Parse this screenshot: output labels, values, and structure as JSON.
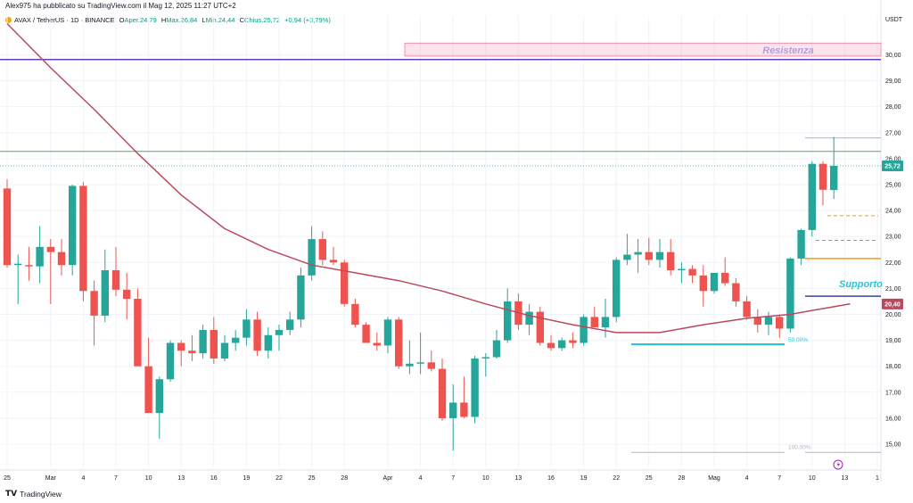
{
  "header": {
    "author_line": "Alex975 ha pubblicato su TradingView.com il Mag 12, 2025 11:27 UTC+2",
    "symbol": "AVAX / TetherUS · 1D · BINANCE",
    "open_label": "O",
    "open_text": "Aper.24,79",
    "high_label": "H",
    "high_text": "Max.26,84",
    "low_label": "L",
    "low_text": "Min.24,44",
    "close_label": "C",
    "close_text": "Chius.25,72",
    "change_text": "+0,94 (+3,79%)"
  },
  "footer": {
    "brand": "TradingView",
    "logo": "tradingview-logo-icon"
  },
  "colors": {
    "up": "#26a69a",
    "down": "#ef5350",
    "ma": "#b94a5e",
    "resistance_line": "#6a3bb5",
    "green_line": "#4caf50",
    "orange_line": "#ff9800",
    "support_line": "#3f3f9f",
    "fib50": "#26c6da"
  },
  "chart_data": {
    "type": "candlestick",
    "currency": "USDT",
    "ylim": [
      14.45,
      31.15
    ],
    "x_tick_labels": [
      {
        "i": 0,
        "label": "25"
      },
      {
        "i": 4,
        "label": "Mar"
      },
      {
        "i": 7,
        "label": "4"
      },
      {
        "i": 10,
        "label": "7"
      },
      {
        "i": 13,
        "label": "10"
      },
      {
        "i": 16,
        "label": "13"
      },
      {
        "i": 19,
        "label": "16"
      },
      {
        "i": 22,
        "label": "19"
      },
      {
        "i": 25,
        "label": "22"
      },
      {
        "i": 28,
        "label": "25"
      },
      {
        "i": 31,
        "label": "28"
      },
      {
        "i": 35,
        "label": "Apr"
      },
      {
        "i": 38,
        "label": "4"
      },
      {
        "i": 41,
        "label": "7"
      },
      {
        "i": 44,
        "label": "10"
      },
      {
        "i": 47,
        "label": "13"
      },
      {
        "i": 50,
        "label": "16"
      },
      {
        "i": 53,
        "label": "19"
      },
      {
        "i": 56,
        "label": "22"
      },
      {
        "i": 59,
        "label": "25"
      },
      {
        "i": 62,
        "label": "28"
      },
      {
        "i": 65,
        "label": "Mag"
      },
      {
        "i": 68,
        "label": "4"
      },
      {
        "i": 71,
        "label": "7"
      },
      {
        "i": 74,
        "label": "10"
      },
      {
        "i": 77,
        "label": "13"
      },
      {
        "i": 80,
        "label": "1"
      }
    ],
    "y_ticks": [
      "15,00",
      "16,00",
      "17,00",
      "18,00",
      "19,00",
      "20,00",
      "21,00",
      "22,00",
      "23,00",
      "24,00",
      "25,00",
      "26,00",
      "27,00",
      "28,00",
      "29,00",
      "30,00"
    ],
    "candles": [
      {
        "o": 24.85,
        "h": 25.2,
        "l": 21.8,
        "c": 21.9
      },
      {
        "o": 21.9,
        "h": 22.3,
        "l": 20.4,
        "c": 21.95
      },
      {
        "o": 21.9,
        "h": 22.6,
        "l": 21.3,
        "c": 21.85
      },
      {
        "o": 21.85,
        "h": 23.4,
        "l": 21.2,
        "c": 22.6
      },
      {
        "o": 22.6,
        "h": 22.9,
        "l": 20.4,
        "c": 22.4
      },
      {
        "o": 22.4,
        "h": 22.9,
        "l": 21.5,
        "c": 21.9
      },
      {
        "o": 21.9,
        "h": 25.0,
        "l": 21.5,
        "c": 24.95
      },
      {
        "o": 24.95,
        "h": 25.1,
        "l": 20.5,
        "c": 20.9
      },
      {
        "o": 20.9,
        "h": 21.3,
        "l": 18.8,
        "c": 19.95
      },
      {
        "o": 19.95,
        "h": 22.5,
        "l": 19.7,
        "c": 21.7
      },
      {
        "o": 21.7,
        "h": 22.6,
        "l": 20.7,
        "c": 20.95
      },
      {
        "o": 20.95,
        "h": 21.6,
        "l": 19.8,
        "c": 20.6
      },
      {
        "o": 20.6,
        "h": 21.0,
        "l": 18.1,
        "c": 18.0
      },
      {
        "o": 18.0,
        "h": 19.1,
        "l": 16.2,
        "c": 16.2
      },
      {
        "o": 16.2,
        "h": 17.6,
        "l": 15.2,
        "c": 17.5
      },
      {
        "o": 17.5,
        "h": 19.0,
        "l": 17.4,
        "c": 18.9
      },
      {
        "o": 18.9,
        "h": 19.0,
        "l": 18.0,
        "c": 18.6
      },
      {
        "o": 18.6,
        "h": 19.2,
        "l": 18.2,
        "c": 18.5
      },
      {
        "o": 18.5,
        "h": 19.6,
        "l": 18.3,
        "c": 19.4
      },
      {
        "o": 19.4,
        "h": 19.9,
        "l": 18.1,
        "c": 18.3
      },
      {
        "o": 18.3,
        "h": 19.2,
        "l": 18.2,
        "c": 18.9
      },
      {
        "o": 18.9,
        "h": 19.4,
        "l": 18.6,
        "c": 19.1
      },
      {
        "o": 19.1,
        "h": 20.2,
        "l": 18.8,
        "c": 19.8
      },
      {
        "o": 19.8,
        "h": 20.1,
        "l": 18.4,
        "c": 18.6
      },
      {
        "o": 18.6,
        "h": 19.5,
        "l": 18.3,
        "c": 19.2
      },
      {
        "o": 19.2,
        "h": 19.6,
        "l": 18.6,
        "c": 19.4
      },
      {
        "o": 19.4,
        "h": 20.1,
        "l": 19.2,
        "c": 19.8
      },
      {
        "o": 19.8,
        "h": 21.8,
        "l": 19.5,
        "c": 21.5
      },
      {
        "o": 21.5,
        "h": 23.4,
        "l": 21.3,
        "c": 22.9
      },
      {
        "o": 22.9,
        "h": 23.2,
        "l": 21.9,
        "c": 22.1
      },
      {
        "o": 22.1,
        "h": 22.6,
        "l": 21.9,
        "c": 22.0
      },
      {
        "o": 22.0,
        "h": 22.1,
        "l": 20.3,
        "c": 20.4
      },
      {
        "o": 20.4,
        "h": 20.6,
        "l": 19.5,
        "c": 19.6
      },
      {
        "o": 19.6,
        "h": 19.7,
        "l": 18.9,
        "c": 18.9
      },
      {
        "o": 18.9,
        "h": 19.3,
        "l": 18.6,
        "c": 18.8
      },
      {
        "o": 18.8,
        "h": 19.9,
        "l": 18.5,
        "c": 19.8
      },
      {
        "o": 19.8,
        "h": 19.9,
        "l": 17.9,
        "c": 18.0
      },
      {
        "o": 18.0,
        "h": 19.0,
        "l": 17.7,
        "c": 18.1
      },
      {
        "o": 18.1,
        "h": 19.3,
        "l": 17.7,
        "c": 18.15
      },
      {
        "o": 18.15,
        "h": 18.6,
        "l": 17.8,
        "c": 17.9
      },
      {
        "o": 17.9,
        "h": 18.3,
        "l": 15.9,
        "c": 16.0
      },
      {
        "o": 16.0,
        "h": 17.3,
        "l": 14.75,
        "c": 16.6
      },
      {
        "o": 16.6,
        "h": 17.6,
        "l": 16.0,
        "c": 16.05
      },
      {
        "o": 16.05,
        "h": 18.4,
        "l": 15.8,
        "c": 18.3
      },
      {
        "o": 18.3,
        "h": 18.5,
        "l": 17.6,
        "c": 18.35
      },
      {
        "o": 18.35,
        "h": 19.4,
        "l": 18.3,
        "c": 19.0
      },
      {
        "o": 19.0,
        "h": 21.0,
        "l": 18.9,
        "c": 20.5
      },
      {
        "o": 20.5,
        "h": 20.8,
        "l": 19.4,
        "c": 19.6
      },
      {
        "o": 19.6,
        "h": 20.4,
        "l": 19.2,
        "c": 20.1
      },
      {
        "o": 20.1,
        "h": 20.3,
        "l": 18.8,
        "c": 18.9
      },
      {
        "o": 18.9,
        "h": 19.2,
        "l": 18.6,
        "c": 18.7
      },
      {
        "o": 18.7,
        "h": 19.1,
        "l": 18.6,
        "c": 19.0
      },
      {
        "o": 19.0,
        "h": 19.3,
        "l": 18.7,
        "c": 18.9
      },
      {
        "o": 18.9,
        "h": 20.0,
        "l": 18.8,
        "c": 19.9
      },
      {
        "o": 19.9,
        "h": 20.3,
        "l": 19.5,
        "c": 19.5
      },
      {
        "o": 19.5,
        "h": 20.6,
        "l": 19.1,
        "c": 19.9
      },
      {
        "o": 19.9,
        "h": 22.2,
        "l": 19.7,
        "c": 22.1
      },
      {
        "o": 22.1,
        "h": 23.1,
        "l": 21.9,
        "c": 22.3
      },
      {
        "o": 22.3,
        "h": 22.9,
        "l": 21.6,
        "c": 22.4
      },
      {
        "o": 22.4,
        "h": 22.95,
        "l": 21.9,
        "c": 22.1
      },
      {
        "o": 22.1,
        "h": 22.9,
        "l": 21.8,
        "c": 22.4
      },
      {
        "o": 22.4,
        "h": 22.9,
        "l": 21.5,
        "c": 21.7
      },
      {
        "o": 21.7,
        "h": 22.0,
        "l": 21.2,
        "c": 21.75
      },
      {
        "o": 21.75,
        "h": 21.9,
        "l": 21.2,
        "c": 21.5
      },
      {
        "o": 21.5,
        "h": 21.9,
        "l": 20.3,
        "c": 20.9
      },
      {
        "o": 20.9,
        "h": 21.6,
        "l": 20.8,
        "c": 21.6
      },
      {
        "o": 21.6,
        "h": 22.2,
        "l": 21.1,
        "c": 21.2
      },
      {
        "o": 21.2,
        "h": 21.4,
        "l": 20.3,
        "c": 20.5
      },
      {
        "o": 20.5,
        "h": 20.7,
        "l": 19.8,
        "c": 19.9
      },
      {
        "o": 19.9,
        "h": 20.2,
        "l": 19.3,
        "c": 19.6
      },
      {
        "o": 19.6,
        "h": 20.1,
        "l": 19.2,
        "c": 19.9
      },
      {
        "o": 19.9,
        "h": 20.0,
        "l": 19.1,
        "c": 19.45
      },
      {
        "o": 19.45,
        "h": 22.2,
        "l": 19.3,
        "c": 22.15
      },
      {
        "o": 22.15,
        "h": 23.3,
        "l": 21.9,
        "c": 23.25
      },
      {
        "o": 23.25,
        "h": 25.9,
        "l": 23.0,
        "c": 25.8
      },
      {
        "o": 25.8,
        "h": 25.9,
        "l": 24.2,
        "c": 24.8
      },
      {
        "o": 24.79,
        "h": 26.84,
        "l": 24.44,
        "c": 25.72
      }
    ],
    "moving_average": [
      {
        "i": 0,
        "v": 31.2
      },
      {
        "i": 4,
        "v": 29.5
      },
      {
        "i": 8,
        "v": 27.9
      },
      {
        "i": 12,
        "v": 26.2
      },
      {
        "i": 16,
        "v": 24.6
      },
      {
        "i": 20,
        "v": 23.3
      },
      {
        "i": 24,
        "v": 22.5
      },
      {
        "i": 28,
        "v": 21.9
      },
      {
        "i": 32,
        "v": 21.6
      },
      {
        "i": 36,
        "v": 21.3
      },
      {
        "i": 40,
        "v": 20.9
      },
      {
        "i": 44,
        "v": 20.4
      },
      {
        "i": 48,
        "v": 19.95
      },
      {
        "i": 52,
        "v": 19.6
      },
      {
        "i": 56,
        "v": 19.3
      },
      {
        "i": 60,
        "v": 19.3
      },
      {
        "i": 64,
        "v": 19.6
      },
      {
        "i": 68,
        "v": 19.85
      },
      {
        "i": 72,
        "v": 20.0
      },
      {
        "i": 74,
        "v": 20.15
      },
      {
        "i": 77.5,
        "v": 20.4
      }
    ],
    "levels": {
      "resistance_zone": {
        "low": 29.95,
        "high": 30.45,
        "label": "Resistenza"
      },
      "purple_line": 29.82,
      "green_line": 26.28,
      "dotted_last_price": 25.72,
      "orange_dash": 23.8,
      "cyan_dash": 22.85,
      "orange_line": 22.15,
      "support_line": 20.7,
      "support_label": "Supporto",
      "fib_50": {
        "value": 18.85,
        "label": "50,00%"
      },
      "fib_100": {
        "value": 14.68,
        "label": "100,00%"
      },
      "target_top": 26.8
    },
    "price_tags": [
      {
        "value": 25.72,
        "label": "25,72",
        "color": "#26a69a"
      },
      {
        "value": 20.4,
        "label": "20,40",
        "color": "#b94a5e"
      }
    ]
  }
}
